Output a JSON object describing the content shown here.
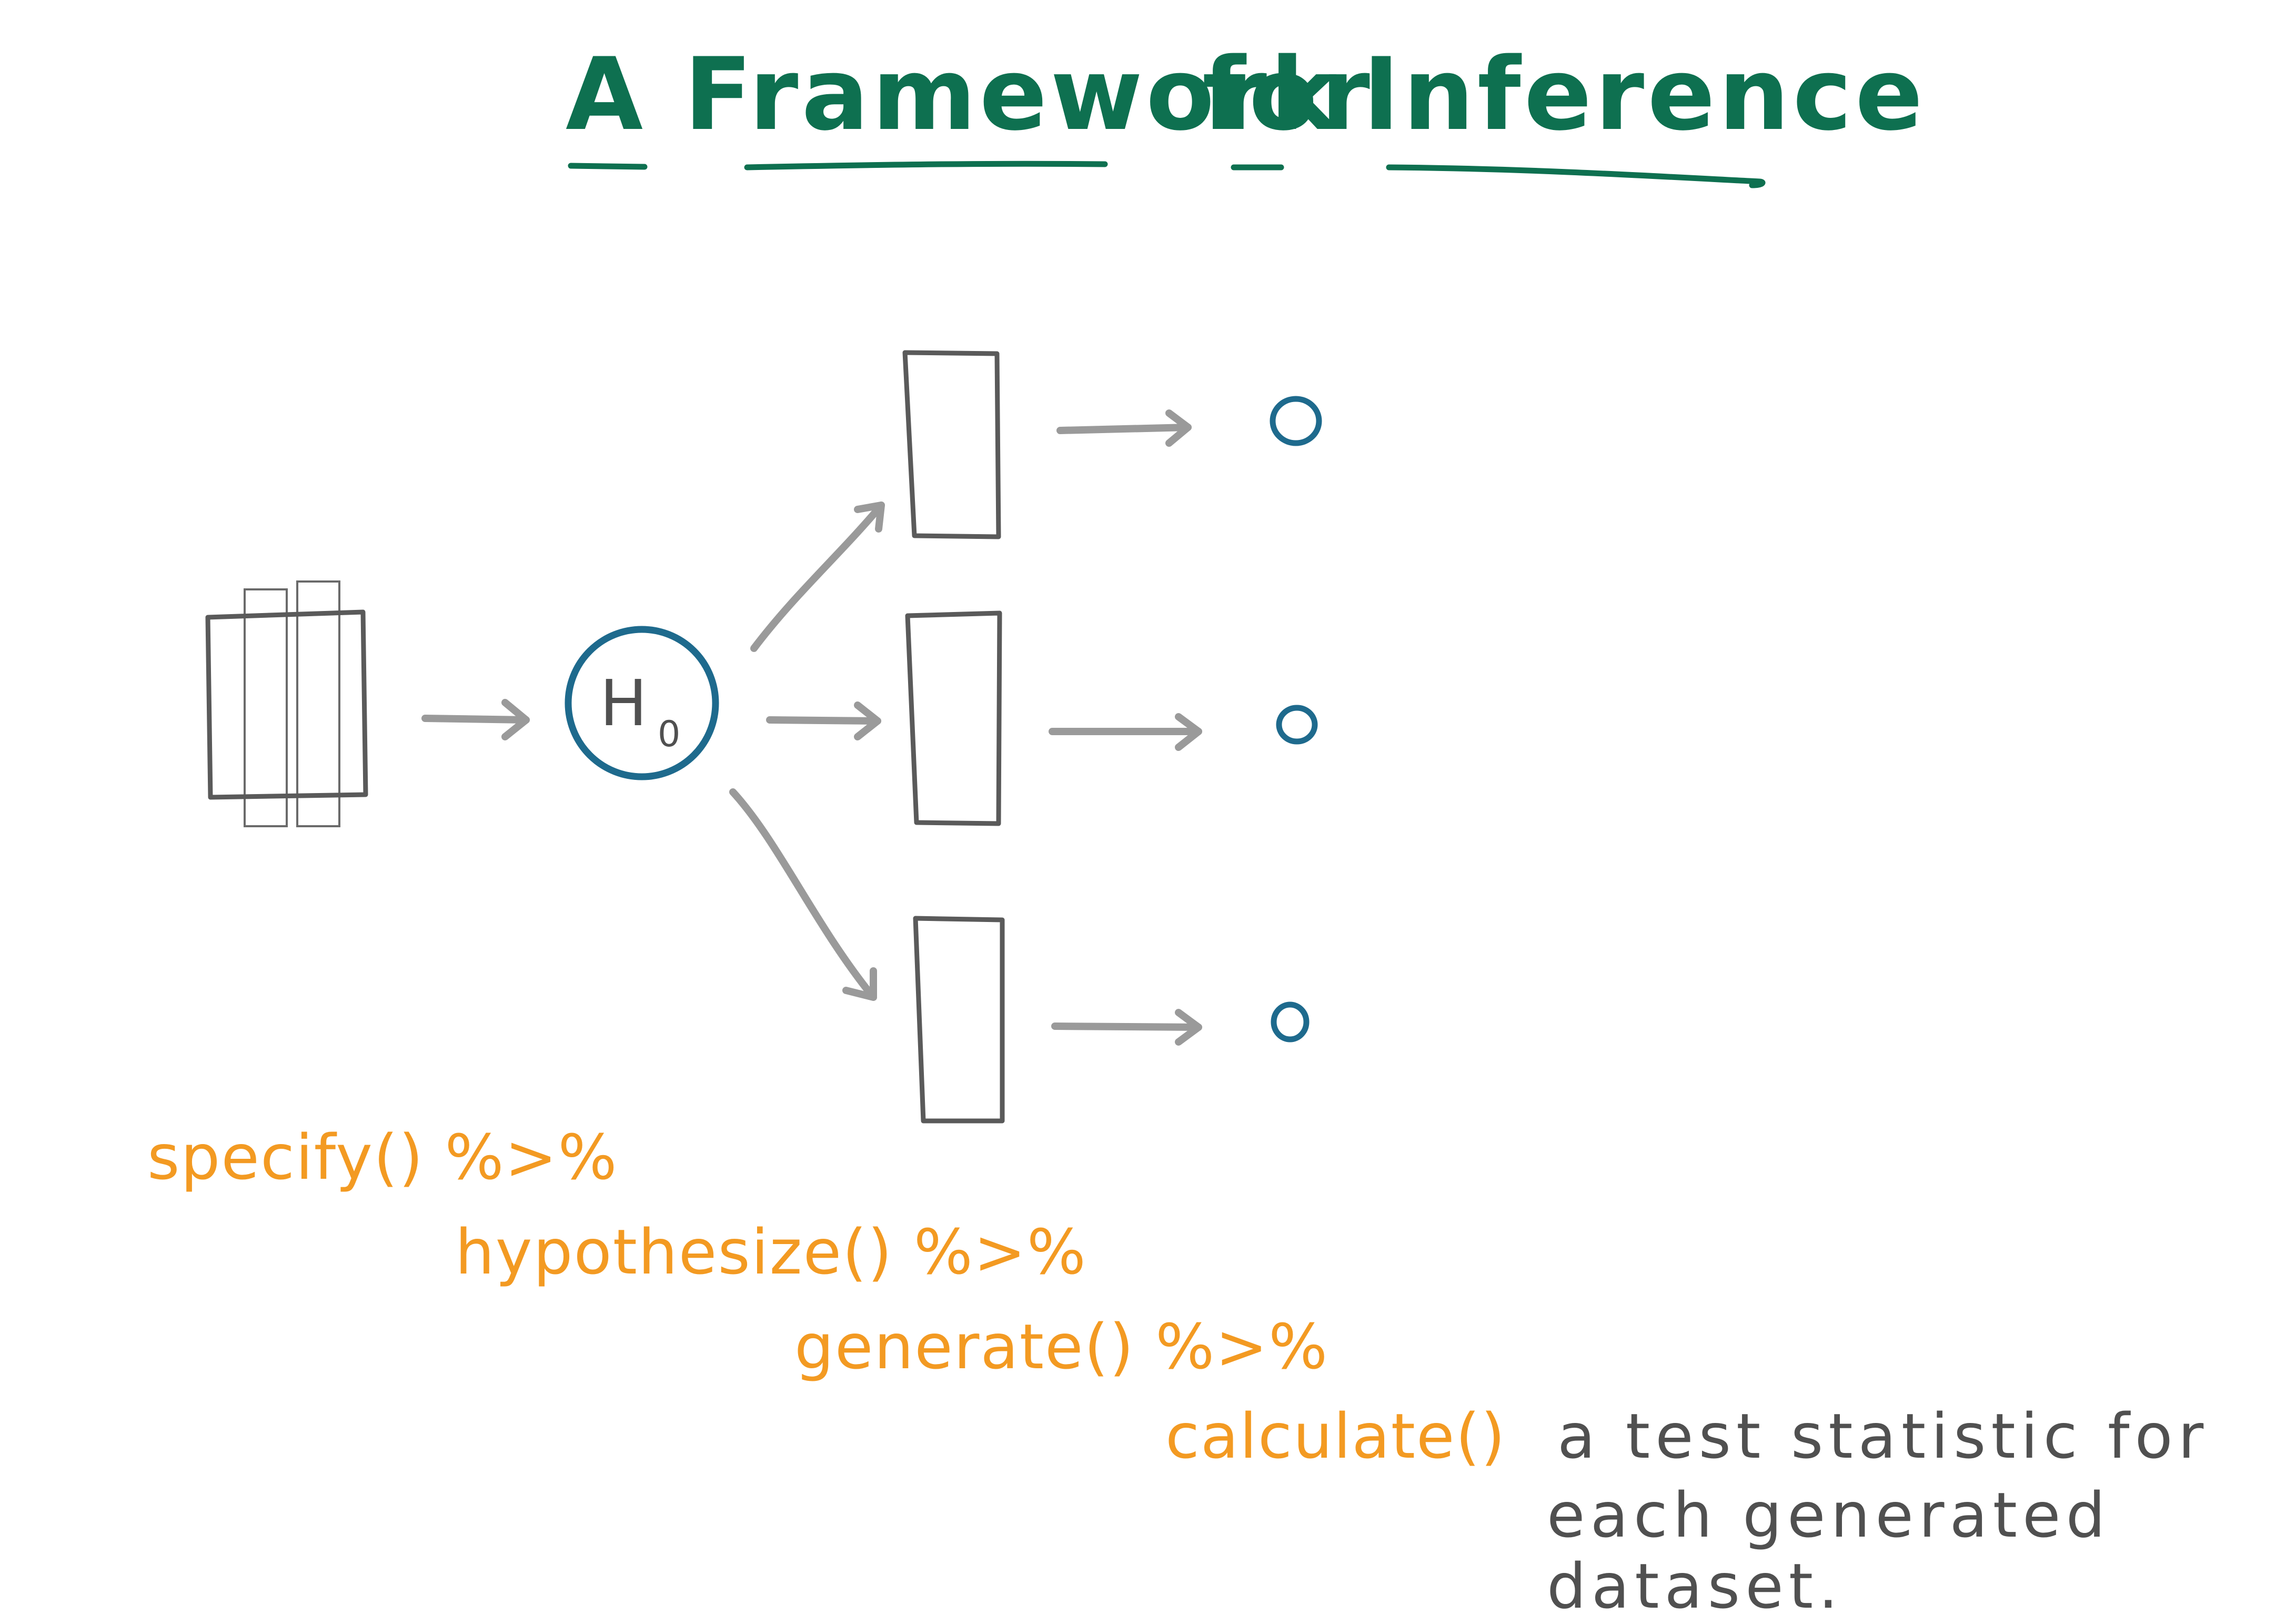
{
  "title": {
    "word_a": "A",
    "word_framework": "Framework",
    "word_for": "for",
    "word_inference": "Inference"
  },
  "hypothesis_node": {
    "main": "H",
    "subscript": "0"
  },
  "pipeline": {
    "specify": "specify() %>%",
    "hypothesize": "hypothesize() %>%",
    "generate": "generate() %>%",
    "calculate": "calculate()"
  },
  "note": {
    "line1": "a test statistic for",
    "line2": "each generated",
    "line3": "dataset."
  },
  "colors": {
    "title": "#0e7050",
    "code": "#f39a22",
    "circle": "#1e6a8d",
    "arrow": "#9a9a9a",
    "ink": "#505050"
  }
}
